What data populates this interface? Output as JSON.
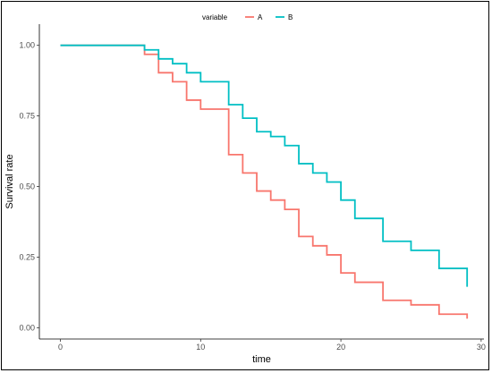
{
  "chart_data": {
    "type": "line",
    "step": true,
    "title": "",
    "xlabel": "time",
    "ylabel": "Survival rate",
    "xlim": [
      -1.5,
      30.2
    ],
    "ylim": [
      -0.04,
      1.075
    ],
    "x_ticks": [
      0,
      10,
      20,
      30
    ],
    "y_ticks": [
      0.0,
      0.25,
      0.5,
      0.75,
      1.0
    ],
    "y_tick_labels": [
      "0.00",
      "0.25",
      "0.50",
      "0.75",
      "1.00"
    ],
    "grid": false,
    "legend": {
      "placement": "top",
      "title": "variable",
      "entries": [
        "A",
        "B"
      ]
    },
    "series": [
      {
        "name": "A",
        "color": "#F8766D",
        "points": [
          [
            0,
            1.0
          ],
          [
            6,
            0.968
          ],
          [
            7,
            0.903
          ],
          [
            8,
            0.871
          ],
          [
            9,
            0.806
          ],
          [
            10,
            0.774
          ],
          [
            12,
            0.613
          ],
          [
            13,
            0.548
          ],
          [
            14,
            0.484
          ],
          [
            15,
            0.452
          ],
          [
            16,
            0.419
          ],
          [
            17,
            0.323
          ],
          [
            18,
            0.29
          ],
          [
            19,
            0.258
          ],
          [
            20,
            0.194
          ],
          [
            21,
            0.161
          ],
          [
            23,
            0.097
          ],
          [
            25,
            0.081
          ],
          [
            27,
            0.048
          ],
          [
            29,
            0.032
          ]
        ],
        "end_x": 29
      },
      {
        "name": "B",
        "color": "#00BFC4",
        "points": [
          [
            0,
            1.0
          ],
          [
            6,
            0.984
          ],
          [
            7,
            0.952
          ],
          [
            8,
            0.935
          ],
          [
            9,
            0.903
          ],
          [
            10,
            0.871
          ],
          [
            12,
            0.79
          ],
          [
            13,
            0.742
          ],
          [
            14,
            0.694
          ],
          [
            15,
            0.677
          ],
          [
            16,
            0.645
          ],
          [
            17,
            0.581
          ],
          [
            18,
            0.548
          ],
          [
            19,
            0.516
          ],
          [
            20,
            0.452
          ],
          [
            21,
            0.387
          ],
          [
            23,
            0.306
          ],
          [
            25,
            0.274
          ],
          [
            27,
            0.21
          ],
          [
            29,
            0.145
          ]
        ],
        "end_x": 29
      }
    ]
  }
}
